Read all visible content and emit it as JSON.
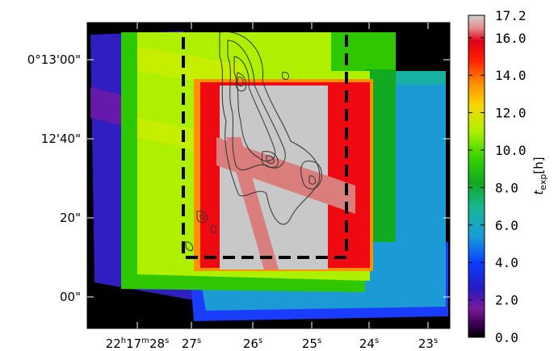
{
  "chart_data": {
    "type": "heatmap",
    "title": "",
    "xlabel": "",
    "ylabel": "",
    "x_ticks": [
      {
        "main": "22",
        "sup1": "h",
        "mid": "17",
        "sup2": "m",
        "tail": "28",
        "sup3": "s",
        "value": 28
      },
      {
        "main": "27",
        "sup1": "s",
        "value": 27
      },
      {
        "main": "26",
        "sup1": "s",
        "value": 26
      },
      {
        "main": "25",
        "sup1": "s",
        "value": 25
      },
      {
        "main": "24",
        "sup1": "s",
        "value": 24
      },
      {
        "main": "23",
        "sup1": "s",
        "value": 23
      }
    ],
    "y_ticks": [
      {
        "label": "0°13'00\"",
        "value": 60
      },
      {
        "label": "12'40\"",
        "value": 40
      },
      {
        "label": "20\"",
        "value": 20
      },
      {
        "label": "00\"",
        "value": 0
      }
    ],
    "colorbar": {
      "label_main": "t",
      "label_sub": "exp",
      "label_unit": "[h]",
      "range": [
        0.0,
        17.2
      ],
      "ticks": [
        "0.0",
        "2.0",
        "4.0",
        "6.0",
        "8.0",
        "10.0",
        "12.0",
        "14.0",
        "16.0",
        "17.2"
      ],
      "tick_values": [
        0,
        2,
        4,
        6,
        8,
        10,
        12,
        14,
        16,
        17.2
      ]
    },
    "exposure_regions_h": [
      {
        "region": "outer western strip",
        "t_exp": 3.6
      },
      {
        "region": "southern band",
        "t_exp": 4.5
      },
      {
        "region": "outer frame",
        "t_exp": 8.5
      },
      {
        "region": "eastern band",
        "t_exp": 6.5
      },
      {
        "region": "inner frame",
        "t_exp": 11.5
      },
      {
        "region": "central overlap",
        "t_exp": 16.2
      },
      {
        "region": "core",
        "t_exp": 17.2
      }
    ],
    "overlays": [
      "dashed rectangle",
      "contours",
      "diagonal stripes"
    ]
  },
  "colors": {
    "background_black": "#000000",
    "dashed_box": "#000000",
    "contour": "#333333",
    "stripe": "#d97d7d"
  }
}
